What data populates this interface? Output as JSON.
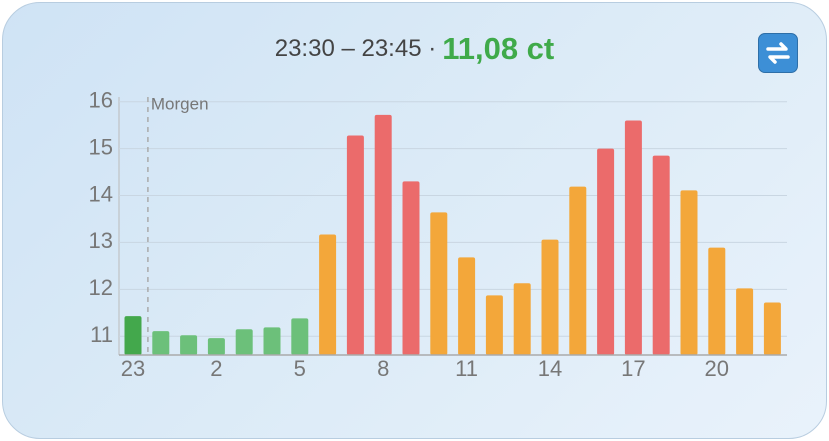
{
  "header": {
    "time": "23:30 – 23:45 ·",
    "price": "11,08 ct"
  },
  "chart_data": {
    "type": "bar",
    "categories": [
      "23",
      null,
      null,
      "2",
      null,
      null,
      "5",
      null,
      null,
      "8",
      null,
      null,
      "11",
      null,
      null,
      "14",
      null,
      null,
      "17",
      null,
      null,
      "20",
      null,
      null
    ],
    "values": [
      11.43,
      11.11,
      11.02,
      10.96,
      11.15,
      11.19,
      11.38,
      13.17,
      15.28,
      15.72,
      14.3,
      13.64,
      12.68,
      11.87,
      12.13,
      13.06,
      14.19,
      15.0,
      15.6,
      14.85,
      14.11,
      12.89,
      12.02,
      11.72
    ],
    "colors": [
      "#43a84c",
      "#6cc07a",
      "#6cc07a",
      "#6cc07a",
      "#6cc07a",
      "#6cc07a",
      "#6cc07a",
      "#f3a73a",
      "#eb6b6b",
      "#eb6b6b",
      "#eb6b6b",
      "#f3a73a",
      "#f3a73a",
      "#f3a73a",
      "#f3a73a",
      "#f3a73a",
      "#f3a73a",
      "#eb6b6b",
      "#eb6b6b",
      "#eb6b6b",
      "#f3a73a",
      "#f3a73a",
      "#f3a73a",
      "#f3a73a"
    ],
    "ylim": [
      10.6,
      16.1
    ],
    "yticks": [
      11,
      12,
      13,
      14,
      15,
      16
    ],
    "grid": true,
    "annotation": "Morgen"
  }
}
